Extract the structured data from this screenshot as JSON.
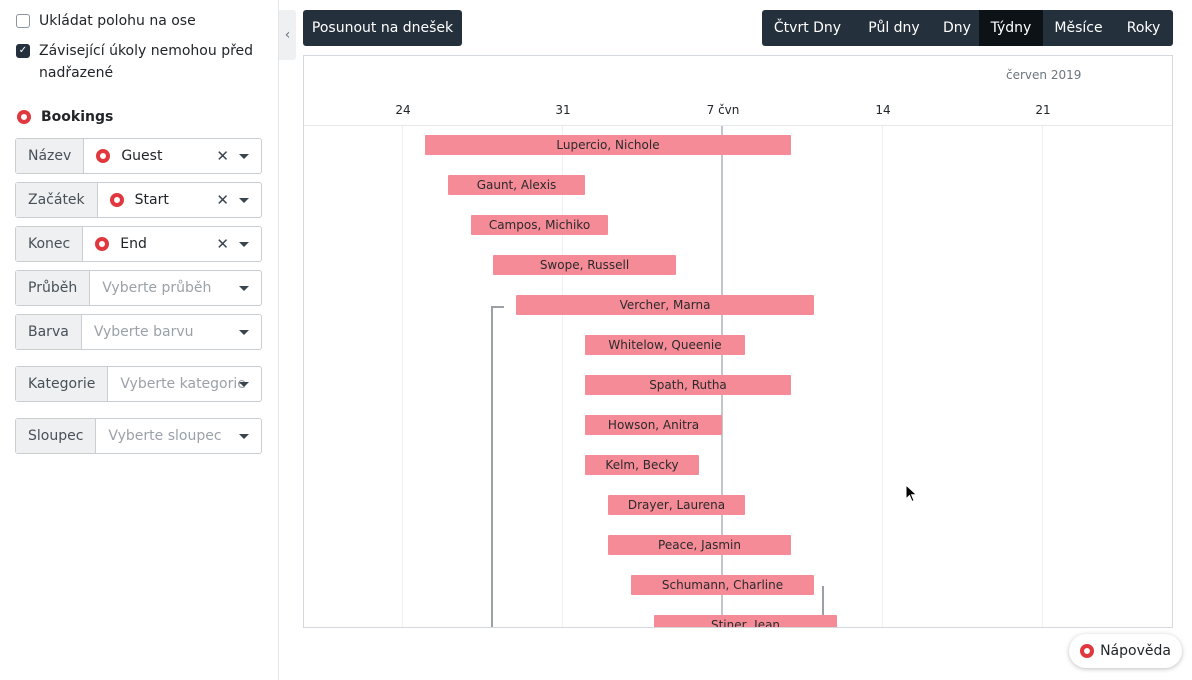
{
  "sidebar": {
    "options": [
      {
        "label": "Ukládat polohu na ose",
        "checked": false
      },
      {
        "label": "Závisející úkoly nemohou před nadřazené",
        "checked": true
      }
    ],
    "section_title": "Bookings",
    "fields": [
      {
        "label": "Název",
        "value": "Guest",
        "placeholder": "",
        "icon": "lifebuoy-icon"
      },
      {
        "label": "Začátek",
        "value": "Start",
        "placeholder": "",
        "icon": "lifebuoy-icon"
      },
      {
        "label": "Konec",
        "value": "End",
        "placeholder": "",
        "icon": "lifebuoy-icon"
      },
      {
        "label": "Průběh",
        "value": "",
        "placeholder": "Vyberte průběh"
      },
      {
        "label": "Barva",
        "value": "",
        "placeholder": "Vyberte barvu"
      },
      {
        "label": "Kategorie",
        "value": "",
        "placeholder": "Vyberte kategorie"
      },
      {
        "label": "Sloupec",
        "value": "",
        "placeholder": "Vyberte sloupec"
      }
    ]
  },
  "toolbar": {
    "today_label": "Posunout na dnešek",
    "zoom_levels": [
      "Čtvrt Dny",
      "Půl dny",
      "Dny",
      "Týdny",
      "Měsíce",
      "Roky"
    ],
    "active_zoom": "Týdny"
  },
  "gantt": {
    "month_label": "červen 2019",
    "ticks": [
      "24",
      "31",
      "7 čvn",
      "14",
      "21"
    ],
    "bar_color": "#f68b98",
    "tasks": [
      {
        "name": "Lupercio, Nichole"
      },
      {
        "name": "Gaunt, Alexis"
      },
      {
        "name": "Campos, Michiko"
      },
      {
        "name": "Swope, Russell"
      },
      {
        "name": "Vercher, Marna"
      },
      {
        "name": "Whitelow, Queenie"
      },
      {
        "name": "Spath, Rutha"
      },
      {
        "name": "Howson, Anitra"
      },
      {
        "name": "Kelm, Becky"
      },
      {
        "name": "Drayer, Laurena"
      },
      {
        "name": "Peace, Jasmin"
      },
      {
        "name": "Schumann, Charline"
      },
      {
        "name": "Stiner, Jean"
      }
    ]
  },
  "help": {
    "label": "Nápověda"
  },
  "colors": {
    "accent_dark": "#24303b",
    "brand_icon": "#e0383e"
  }
}
